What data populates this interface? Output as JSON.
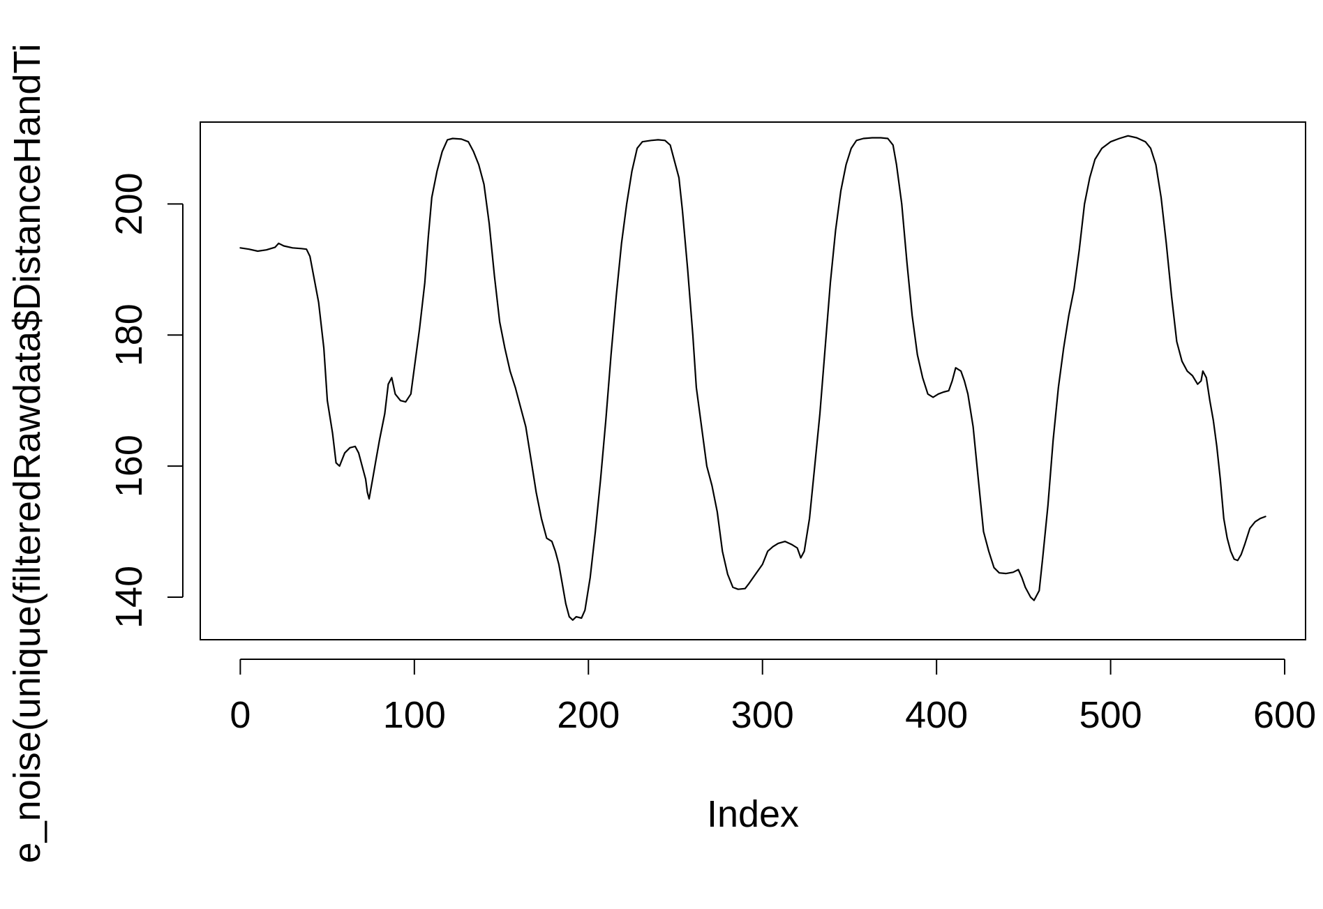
{
  "chart_data": {
    "type": "line",
    "xlabel": "Index",
    "ylabel": "e_noise(unique(filteredRawdata$DistanceHandTi",
    "xlim": [
      -23,
      612
    ],
    "ylim": [
      133.5,
      212.5
    ],
    "xticks": [
      0,
      100,
      200,
      300,
      400,
      500,
      600
    ],
    "xtick_labels": [
      "0",
      "100",
      "200",
      "300",
      "400",
      "500",
      "600"
    ],
    "yticks": [
      140,
      160,
      180,
      200
    ],
    "ytick_labels": [
      "140",
      "160",
      "180",
      "200"
    ],
    "grid": false,
    "line_color": "#000000",
    "series": [
      {
        "points": [
          [
            0,
            193.3
          ],
          [
            5,
            193.1
          ],
          [
            10,
            192.8
          ],
          [
            15,
            193.0
          ],
          [
            20,
            193.4
          ],
          [
            22,
            194.0
          ],
          [
            25,
            193.6
          ],
          [
            30,
            193.3
          ],
          [
            35,
            193.2
          ],
          [
            38,
            193.1
          ],
          [
            40,
            192.0
          ],
          [
            45,
            185.0
          ],
          [
            48,
            178.0
          ],
          [
            50,
            170.0
          ],
          [
            53,
            165.0
          ],
          [
            55,
            160.5
          ],
          [
            57,
            160.0
          ],
          [
            60,
            162.0
          ],
          [
            63,
            162.8
          ],
          [
            66,
            163.0
          ],
          [
            68,
            162.0
          ],
          [
            70,
            160.0
          ],
          [
            72,
            158.0
          ],
          [
            73,
            156.0
          ],
          [
            74,
            155.0
          ],
          [
            76,
            158.0
          ],
          [
            78,
            161.0
          ],
          [
            80,
            164.0
          ],
          [
            83,
            168.0
          ],
          [
            85,
            172.5
          ],
          [
            87,
            173.5
          ],
          [
            89,
            171.0
          ],
          [
            92,
            170.0
          ],
          [
            95,
            169.8
          ],
          [
            98,
            171.0
          ],
          [
            100,
            175.0
          ],
          [
            103,
            181.0
          ],
          [
            106,
            188.0
          ],
          [
            108,
            195.0
          ],
          [
            110,
            201.0
          ],
          [
            113,
            205.0
          ],
          [
            116,
            208.0
          ],
          [
            119,
            209.8
          ],
          [
            122,
            210.0
          ],
          [
            127,
            209.9
          ],
          [
            131,
            209.5
          ],
          [
            134,
            208.0
          ],
          [
            137,
            206.0
          ],
          [
            140,
            203.0
          ],
          [
            143,
            197.0
          ],
          [
            146,
            189.0
          ],
          [
            149,
            182.0
          ],
          [
            152,
            178.0
          ],
          [
            155,
            174.5
          ],
          [
            158,
            172.0
          ],
          [
            161,
            169.0
          ],
          [
            164,
            166.0
          ],
          [
            167,
            161.0
          ],
          [
            170,
            156.0
          ],
          [
            173,
            152.0
          ],
          [
            176,
            149.0
          ],
          [
            179,
            148.5
          ],
          [
            181,
            147.0
          ],
          [
            183,
            145.0
          ],
          [
            185,
            142.0
          ],
          [
            187,
            139.0
          ],
          [
            189,
            137.0
          ],
          [
            191,
            136.5
          ],
          [
            193,
            137.0
          ],
          [
            196,
            136.8
          ],
          [
            198,
            138.0
          ],
          [
            201,
            143.0
          ],
          [
            204,
            150.0
          ],
          [
            207,
            158.0
          ],
          [
            210,
            167.0
          ],
          [
            213,
            177.0
          ],
          [
            216,
            186.0
          ],
          [
            219,
            194.0
          ],
          [
            222,
            200.0
          ],
          [
            225,
            205.0
          ],
          [
            228,
            208.5
          ],
          [
            231,
            209.5
          ],
          [
            236,
            209.7
          ],
          [
            240,
            209.8
          ],
          [
            244,
            209.7
          ],
          [
            247,
            209.0
          ],
          [
            249,
            207.0
          ],
          [
            252,
            204.0
          ],
          [
            254,
            199.0
          ],
          [
            257,
            190.0
          ],
          [
            260,
            180.0
          ],
          [
            262,
            172.0
          ],
          [
            264,
            168.0
          ],
          [
            266,
            164.0
          ],
          [
            268,
            160.0
          ],
          [
            271,
            157.0
          ],
          [
            274,
            153.0
          ],
          [
            277,
            147.0
          ],
          [
            280,
            143.5
          ],
          [
            283,
            141.5
          ],
          [
            286,
            141.2
          ],
          [
            290,
            141.3
          ],
          [
            292,
            142.0
          ],
          [
            296,
            143.5
          ],
          [
            300,
            145.0
          ],
          [
            303,
            147.0
          ],
          [
            306,
            147.7
          ],
          [
            309,
            148.2
          ],
          [
            313,
            148.5
          ],
          [
            317,
            148.0
          ],
          [
            320,
            147.5
          ],
          [
            322,
            146.0
          ],
          [
            324,
            147.0
          ],
          [
            327,
            152.0
          ],
          [
            330,
            160.0
          ],
          [
            333,
            168.0
          ],
          [
            336,
            178.0
          ],
          [
            339,
            188.0
          ],
          [
            342,
            196.0
          ],
          [
            345,
            202.0
          ],
          [
            348,
            206.0
          ],
          [
            351,
            208.5
          ],
          [
            354,
            209.7
          ],
          [
            358,
            210.0
          ],
          [
            363,
            210.1
          ],
          [
            368,
            210.1
          ],
          [
            372,
            210.0
          ],
          [
            375,
            209.0
          ],
          [
            377,
            206.0
          ],
          [
            380,
            200.0
          ],
          [
            383,
            191.0
          ],
          [
            386,
            183.0
          ],
          [
            389,
            177.0
          ],
          [
            392,
            173.5
          ],
          [
            395,
            171.0
          ],
          [
            398,
            170.5
          ],
          [
            401,
            171.0
          ],
          [
            404,
            171.3
          ],
          [
            407,
            171.5
          ],
          [
            409,
            173.0
          ],
          [
            411,
            175.0
          ],
          [
            414,
            174.5
          ],
          [
            416,
            173.0
          ],
          [
            418,
            171.0
          ],
          [
            421,
            166.0
          ],
          [
            424,
            158.0
          ],
          [
            427,
            150.0
          ],
          [
            430,
            147.0
          ],
          [
            433,
            144.5
          ],
          [
            436,
            143.7
          ],
          [
            440,
            143.6
          ],
          [
            444,
            143.8
          ],
          [
            447,
            144.2
          ],
          [
            449,
            143.0
          ],
          [
            451,
            141.5
          ],
          [
            454,
            140.0
          ],
          [
            456,
            139.5
          ],
          [
            459,
            141.0
          ],
          [
            461,
            146.0
          ],
          [
            464,
            154.0
          ],
          [
            467,
            164.0
          ],
          [
            470,
            172.0
          ],
          [
            473,
            178.0
          ],
          [
            476,
            183.0
          ],
          [
            479,
            187.0
          ],
          [
            482,
            193.0
          ],
          [
            485,
            200.0
          ],
          [
            488,
            204.0
          ],
          [
            491,
            206.8
          ],
          [
            495,
            208.5
          ],
          [
            500,
            209.5
          ],
          [
            505,
            210.0
          ],
          [
            510,
            210.4
          ],
          [
            515,
            210.1
          ],
          [
            520,
            209.5
          ],
          [
            523,
            208.5
          ],
          [
            526,
            206.0
          ],
          [
            529,
            201.0
          ],
          [
            532,
            194.0
          ],
          [
            535,
            186.0
          ],
          [
            538,
            179.0
          ],
          [
            541,
            176.0
          ],
          [
            544,
            174.5
          ],
          [
            547,
            173.8
          ],
          [
            550,
            172.5
          ],
          [
            552,
            173.0
          ],
          [
            553,
            174.5
          ],
          [
            555,
            173.5
          ],
          [
            557,
            170.0
          ],
          [
            559,
            167.0
          ],
          [
            561,
            163.0
          ],
          [
            563,
            158.0
          ],
          [
            565,
            152.0
          ],
          [
            567,
            149.0
          ],
          [
            569,
            147.0
          ],
          [
            571,
            145.8
          ],
          [
            573,
            145.6
          ],
          [
            575,
            146.5
          ],
          [
            577,
            148.0
          ],
          [
            580,
            150.5
          ],
          [
            583,
            151.5
          ],
          [
            586,
            152.0
          ],
          [
            589,
            152.3
          ]
        ]
      }
    ]
  }
}
